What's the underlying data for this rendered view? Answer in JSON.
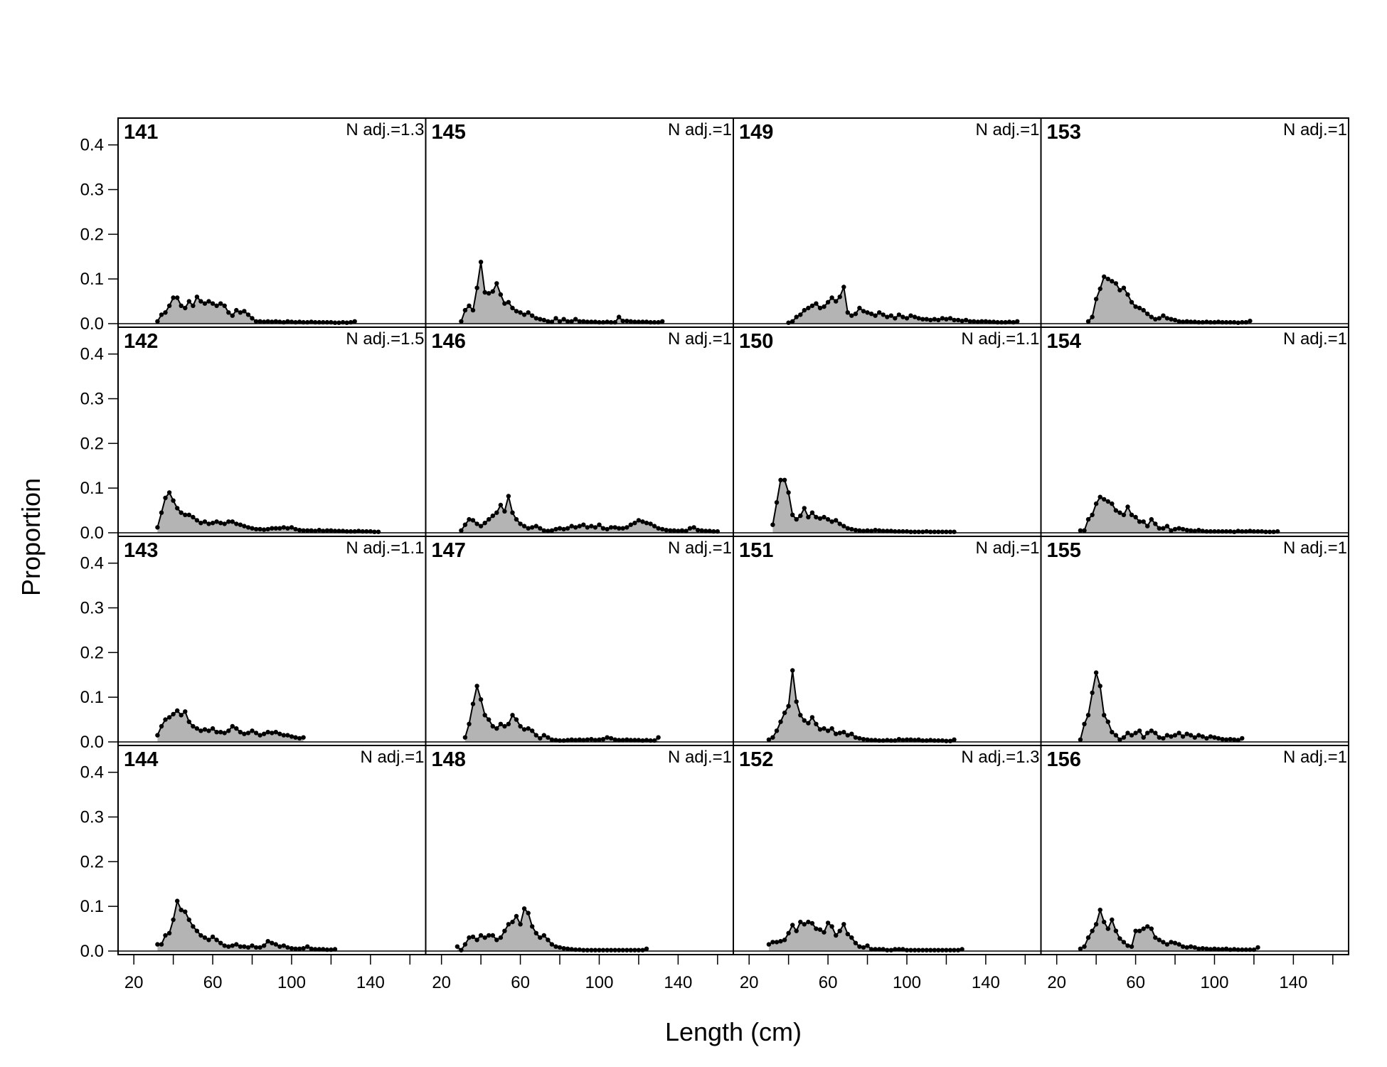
{
  "chart_data": {
    "type": "area",
    "xlabel": "Length (cm)",
    "ylabel": "Proportion",
    "xlim": [
      12,
      168
    ],
    "ylim": [
      -0.008,
      0.46
    ],
    "xticks": [
      20,
      40,
      60,
      80,
      100,
      120,
      140,
      160
    ],
    "xtick_labels": [
      "20",
      "",
      "60",
      "",
      "100",
      "",
      "140",
      ""
    ],
    "yticks": [
      0.0,
      0.1,
      0.2,
      0.3,
      0.4
    ],
    "ytick_labels": [
      "0.0",
      "0.1",
      "0.2",
      "0.3",
      "0.4"
    ],
    "layout": {
      "columns": 4,
      "rows": 4,
      "fill": "column-major"
    },
    "panels": [
      {
        "id": "141",
        "n_adj": "N adj.=1.3",
        "x0": 32,
        "dx": 2,
        "values": [
          0.005,
          0.02,
          0.025,
          0.04,
          0.058,
          0.058,
          0.04,
          0.035,
          0.05,
          0.04,
          0.06,
          0.05,
          0.045,
          0.05,
          0.045,
          0.04,
          0.045,
          0.04,
          0.025,
          0.018,
          0.03,
          0.025,
          0.028,
          0.02,
          0.012,
          0.005,
          0.005,
          0.004,
          0.005,
          0.004,
          0.005,
          0.004,
          0.003,
          0.005,
          0.004,
          0.003,
          0.004,
          0.003,
          0.003,
          0.004,
          0.003,
          0.003,
          0.003,
          0.003,
          0.003,
          0.002,
          0.002,
          0.003,
          0.002,
          0.003,
          0.005
        ]
      },
      {
        "id": "142",
        "n_adj": "N adj.=1.5",
        "x0": 32,
        "dx": 2,
        "values": [
          0.012,
          0.045,
          0.078,
          0.09,
          0.072,
          0.055,
          0.045,
          0.04,
          0.04,
          0.035,
          0.028,
          0.022,
          0.025,
          0.02,
          0.022,
          0.025,
          0.022,
          0.02,
          0.025,
          0.025,
          0.02,
          0.018,
          0.015,
          0.012,
          0.01,
          0.008,
          0.008,
          0.007,
          0.008,
          0.01,
          0.01,
          0.01,
          0.012,
          0.01,
          0.012,
          0.008,
          0.006,
          0.005,
          0.005,
          0.005,
          0.004,
          0.006,
          0.004,
          0.005,
          0.005,
          0.004,
          0.004,
          0.004,
          0.003,
          0.003,
          0.003,
          0.004,
          0.003,
          0.003,
          0.003,
          0.002,
          0.002
        ]
      },
      {
        "id": "143",
        "n_adj": "N adj.=1.1",
        "x0": 32,
        "dx": 2,
        "values": [
          0.015,
          0.035,
          0.05,
          0.055,
          0.062,
          0.07,
          0.06,
          0.068,
          0.045,
          0.035,
          0.03,
          0.025,
          0.028,
          0.025,
          0.03,
          0.022,
          0.022,
          0.02,
          0.025,
          0.035,
          0.03,
          0.022,
          0.018,
          0.02,
          0.025,
          0.02,
          0.015,
          0.018,
          0.022,
          0.02,
          0.022,
          0.018,
          0.015,
          0.015,
          0.012,
          0.01,
          0.008,
          0.01
        ]
      },
      {
        "id": "144",
        "n_adj": "N adj.=1",
        "x0": 32,
        "dx": 2,
        "values": [
          0.015,
          0.015,
          0.035,
          0.04,
          0.07,
          0.112,
          0.092,
          0.088,
          0.07,
          0.055,
          0.045,
          0.035,
          0.03,
          0.025,
          0.032,
          0.025,
          0.018,
          0.012,
          0.01,
          0.012,
          0.015,
          0.01,
          0.01,
          0.008,
          0.012,
          0.008,
          0.008,
          0.012,
          0.022,
          0.018,
          0.015,
          0.01,
          0.012,
          0.008,
          0.006,
          0.005,
          0.005,
          0.006,
          0.01,
          0.005,
          0.004,
          0.004,
          0.004,
          0.003,
          0.003,
          0.004
        ]
      },
      {
        "id": "145",
        "n_adj": "N adj.=1",
        "x0": 30,
        "dx": 2,
        "values": [
          0.005,
          0.03,
          0.04,
          0.03,
          0.08,
          0.138,
          0.07,
          0.068,
          0.072,
          0.09,
          0.065,
          0.045,
          0.048,
          0.035,
          0.028,
          0.025,
          0.02,
          0.025,
          0.018,
          0.012,
          0.01,
          0.008,
          0.005,
          0.004,
          0.012,
          0.005,
          0.01,
          0.005,
          0.005,
          0.01,
          0.005,
          0.005,
          0.004,
          0.004,
          0.004,
          0.003,
          0.003,
          0.004,
          0.003,
          0.003,
          0.015,
          0.006,
          0.006,
          0.005,
          0.004,
          0.004,
          0.004,
          0.004,
          0.003,
          0.003,
          0.003,
          0.005
        ]
      },
      {
        "id": "146",
        "n_adj": "N adj.=1",
        "x0": 30,
        "dx": 2,
        "values": [
          0.005,
          0.018,
          0.03,
          0.028,
          0.02,
          0.015,
          0.022,
          0.03,
          0.038,
          0.045,
          0.062,
          0.048,
          0.082,
          0.045,
          0.03,
          0.02,
          0.015,
          0.01,
          0.012,
          0.015,
          0.01,
          0.005,
          0.004,
          0.005,
          0.008,
          0.01,
          0.008,
          0.01,
          0.015,
          0.012,
          0.015,
          0.018,
          0.012,
          0.015,
          0.012,
          0.018,
          0.01,
          0.008,
          0.012,
          0.012,
          0.01,
          0.01,
          0.012,
          0.018,
          0.022,
          0.028,
          0.025,
          0.022,
          0.02,
          0.015,
          0.01,
          0.008,
          0.006,
          0.005,
          0.005,
          0.004,
          0.005,
          0.004,
          0.01,
          0.012,
          0.006,
          0.005,
          0.004,
          0.004,
          0.003,
          0.003
        ]
      },
      {
        "id": "147",
        "n_adj": "N adj.=1",
        "x0": 32,
        "dx": 2,
        "values": [
          0.01,
          0.04,
          0.085,
          0.125,
          0.095,
          0.06,
          0.05,
          0.035,
          0.03,
          0.04,
          0.035,
          0.04,
          0.06,
          0.05,
          0.035,
          0.028,
          0.03,
          0.025,
          0.015,
          0.008,
          0.015,
          0.01,
          0.005,
          0.004,
          0.003,
          0.003,
          0.004,
          0.005,
          0.004,
          0.005,
          0.004,
          0.005,
          0.006,
          0.004,
          0.005,
          0.006,
          0.01,
          0.008,
          0.005,
          0.004,
          0.004,
          0.005,
          0.004,
          0.004,
          0.004,
          0.003,
          0.004,
          0.003,
          0.003,
          0.01
        ]
      },
      {
        "id": "148",
        "n_adj": "N adj.=1",
        "x0": 28,
        "dx": 2,
        "values": [
          0.01,
          0.002,
          0.015,
          0.03,
          0.032,
          0.025,
          0.035,
          0.03,
          0.035,
          0.035,
          0.025,
          0.03,
          0.045,
          0.06,
          0.065,
          0.078,
          0.06,
          0.095,
          0.085,
          0.055,
          0.04,
          0.03,
          0.035,
          0.025,
          0.015,
          0.01,
          0.008,
          0.006,
          0.005,
          0.004,
          0.003,
          0.003,
          0.002,
          0.002,
          0.002,
          0.002,
          0.002,
          0.002,
          0.002,
          0.002,
          0.002,
          0.002,
          0.002,
          0.002,
          0.002,
          0.002,
          0.002,
          0.002,
          0.005
        ]
      },
      {
        "id": "149",
        "n_adj": "N adj.=1",
        "x0": 40,
        "dx": 2,
        "values": [
          0.002,
          0.005,
          0.015,
          0.02,
          0.03,
          0.035,
          0.04,
          0.045,
          0.035,
          0.038,
          0.048,
          0.058,
          0.05,
          0.06,
          0.082,
          0.025,
          0.018,
          0.022,
          0.035,
          0.028,
          0.025,
          0.022,
          0.018,
          0.025,
          0.02,
          0.015,
          0.018,
          0.012,
          0.02,
          0.015,
          0.012,
          0.018,
          0.015,
          0.012,
          0.01,
          0.01,
          0.008,
          0.01,
          0.008,
          0.012,
          0.01,
          0.012,
          0.008,
          0.008,
          0.006,
          0.008,
          0.005,
          0.005,
          0.004,
          0.005,
          0.005,
          0.004,
          0.004,
          0.003,
          0.003,
          0.003,
          0.004,
          0.003,
          0.005
        ]
      },
      {
        "id": "150",
        "n_adj": "N adj.=1.1",
        "x0": 32,
        "dx": 2,
        "values": [
          0.018,
          0.068,
          0.118,
          0.118,
          0.09,
          0.04,
          0.03,
          0.038,
          0.055,
          0.035,
          0.045,
          0.035,
          0.032,
          0.035,
          0.03,
          0.025,
          0.028,
          0.02,
          0.015,
          0.01,
          0.008,
          0.006,
          0.005,
          0.004,
          0.005,
          0.004,
          0.006,
          0.005,
          0.004,
          0.004,
          0.004,
          0.003,
          0.003,
          0.003,
          0.003,
          0.002,
          0.002,
          0.002,
          0.002,
          0.003,
          0.002,
          0.002,
          0.002,
          0.002,
          0.002,
          0.002,
          0.002
        ]
      },
      {
        "id": "151",
        "n_adj": "N adj.=1",
        "x0": 30,
        "dx": 2,
        "values": [
          0.005,
          0.01,
          0.025,
          0.045,
          0.065,
          0.08,
          0.16,
          0.09,
          0.06,
          0.048,
          0.042,
          0.055,
          0.04,
          0.028,
          0.03,
          0.025,
          0.03,
          0.018,
          0.02,
          0.022,
          0.015,
          0.018,
          0.01,
          0.008,
          0.006,
          0.005,
          0.004,
          0.004,
          0.003,
          0.003,
          0.004,
          0.003,
          0.003,
          0.006,
          0.004,
          0.005,
          0.005,
          0.004,
          0.005,
          0.003,
          0.003,
          0.004,
          0.003,
          0.003,
          0.003,
          0.002,
          0.002,
          0.005
        ]
      },
      {
        "id": "152",
        "n_adj": "N adj.=1.3",
        "x0": 30,
        "dx": 2,
        "values": [
          0.015,
          0.02,
          0.02,
          0.022,
          0.025,
          0.04,
          0.058,
          0.045,
          0.065,
          0.06,
          0.065,
          0.062,
          0.05,
          0.048,
          0.042,
          0.063,
          0.055,
          0.035,
          0.045,
          0.06,
          0.038,
          0.03,
          0.018,
          0.01,
          0.008,
          0.012,
          0.004,
          0.004,
          0.004,
          0.004,
          0.002,
          0.002,
          0.004,
          0.004,
          0.004,
          0.002,
          0.002,
          0.002,
          0.002,
          0.002,
          0.002,
          0.002,
          0.002,
          0.002,
          0.002,
          0.002,
          0.002,
          0.002,
          0.002,
          0.004
        ]
      },
      {
        "id": "153",
        "n_adj": "N adj.=1",
        "x0": 36,
        "dx": 2,
        "values": [
          0.005,
          0.015,
          0.055,
          0.078,
          0.105,
          0.1,
          0.095,
          0.09,
          0.075,
          0.08,
          0.065,
          0.048,
          0.038,
          0.035,
          0.03,
          0.022,
          0.015,
          0.01,
          0.012,
          0.018,
          0.012,
          0.01,
          0.008,
          0.005,
          0.004,
          0.005,
          0.004,
          0.004,
          0.003,
          0.003,
          0.004,
          0.003,
          0.003,
          0.004,
          0.003,
          0.003,
          0.003,
          0.003,
          0.002,
          0.003,
          0.003,
          0.006
        ]
      },
      {
        "id": "154",
        "n_adj": "N adj.=1",
        "x0": 32,
        "dx": 2,
        "values": [
          0.005,
          0.005,
          0.03,
          0.04,
          0.065,
          0.08,
          0.075,
          0.07,
          0.065,
          0.05,
          0.045,
          0.04,
          0.058,
          0.04,
          0.035,
          0.025,
          0.025,
          0.015,
          0.03,
          0.02,
          0.01,
          0.01,
          0.015,
          0.005,
          0.008,
          0.01,
          0.008,
          0.006,
          0.005,
          0.004,
          0.006,
          0.004,
          0.003,
          0.003,
          0.003,
          0.003,
          0.003,
          0.003,
          0.003,
          0.002,
          0.004,
          0.003,
          0.003,
          0.004,
          0.003,
          0.003,
          0.003,
          0.002,
          0.002,
          0.002,
          0.003
        ]
      },
      {
        "id": "155",
        "n_adj": "N adj.=1",
        "x0": 32,
        "dx": 2,
        "values": [
          0.005,
          0.04,
          0.06,
          0.11,
          0.155,
          0.125,
          0.06,
          0.045,
          0.022,
          0.015,
          0.005,
          0.01,
          0.02,
          0.015,
          0.02,
          0.025,
          0.01,
          0.02,
          0.025,
          0.02,
          0.01,
          0.008,
          0.015,
          0.012,
          0.015,
          0.02,
          0.012,
          0.018,
          0.015,
          0.01,
          0.015,
          0.012,
          0.008,
          0.012,
          0.01,
          0.008,
          0.006,
          0.005,
          0.006,
          0.005,
          0.004,
          0.008
        ]
      },
      {
        "id": "156",
        "n_adj": "N adj.=1",
        "x0": 32,
        "dx": 2,
        "values": [
          0.005,
          0.01,
          0.03,
          0.045,
          0.06,
          0.092,
          0.065,
          0.05,
          0.07,
          0.045,
          0.028,
          0.02,
          0.012,
          0.01,
          0.045,
          0.045,
          0.05,
          0.055,
          0.05,
          0.03,
          0.025,
          0.02,
          0.015,
          0.02,
          0.018,
          0.015,
          0.01,
          0.008,
          0.01,
          0.008,
          0.005,
          0.006,
          0.005,
          0.004,
          0.005,
          0.004,
          0.004,
          0.005,
          0.003,
          0.004,
          0.003,
          0.003,
          0.003,
          0.003,
          0.003,
          0.008
        ]
      }
    ]
  }
}
